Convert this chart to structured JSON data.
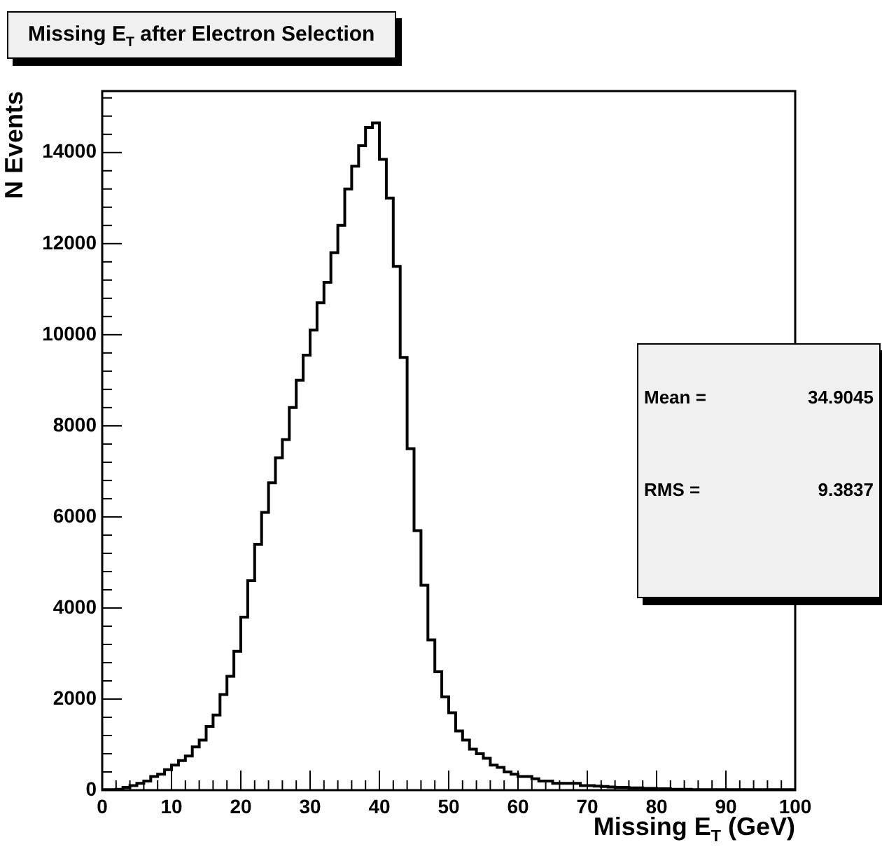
{
  "chart_data": {
    "type": "histogram",
    "title": "Missing E$_{T}$ after Electron Selection",
    "xlabel": "Missing E$_{T}$ (GeV)",
    "ylabel": "N Events",
    "bins": [
      0,
      1,
      2,
      3,
      4,
      5,
      6,
      7,
      8,
      9,
      10,
      11,
      12,
      13,
      14,
      15,
      16,
      17,
      18,
      19,
      20,
      21,
      22,
      23,
      24,
      25,
      26,
      27,
      28,
      29,
      30,
      31,
      32,
      33,
      34,
      35,
      36,
      37,
      38,
      39,
      40,
      41,
      42,
      43,
      44,
      45,
      46,
      47,
      48,
      49,
      50,
      51,
      52,
      53,
      54,
      55,
      56,
      57,
      58,
      59,
      60,
      61,
      62,
      63,
      64,
      65,
      66,
      67,
      68,
      69,
      70,
      71,
      72,
      73,
      74,
      75,
      76,
      77,
      78,
      79,
      80,
      81,
      82,
      83,
      84,
      85,
      86,
      87,
      88,
      89,
      90,
      91,
      92,
      93,
      94,
      95,
      96,
      97,
      98,
      99,
      100
    ],
    "values": [
      10,
      10,
      20,
      60,
      100,
      150,
      200,
      300,
      350,
      450,
      550,
      650,
      750,
      950,
      1100,
      1400,
      1650,
      2100,
      2500,
      3050,
      3800,
      4600,
      5400,
      6100,
      6750,
      7300,
      7700,
      8400,
      9000,
      9550,
      10100,
      10700,
      11150,
      11800,
      12400,
      13200,
      13700,
      14150,
      14550,
      14650,
      13850,
      13000,
      11500,
      9500,
      7500,
      5700,
      4500,
      3300,
      2600,
      2050,
      1700,
      1300,
      1100,
      900,
      800,
      700,
      550,
      500,
      400,
      350,
      300,
      300,
      250,
      200,
      200,
      150,
      150,
      150,
      150,
      100,
      100,
      90,
      80,
      70,
      60,
      60,
      50,
      50,
      40,
      40,
      30,
      30,
      20,
      20,
      20,
      10,
      10,
      10,
      10,
      10,
      10,
      10,
      10,
      10,
      10,
      10,
      10,
      10,
      10,
      10
    ],
    "color": "#000000",
    "xlim": [
      0,
      100
    ],
    "ylim": [
      0,
      15350
    ],
    "xticks": [
      0,
      10,
      20,
      30,
      40,
      50,
      60,
      70,
      80,
      90,
      100
    ],
    "yticks": [
      0,
      2000,
      4000,
      6000,
      8000,
      10000,
      12000,
      14000
    ],
    "grid": false,
    "legend": false,
    "annotations": [
      "Mean = 34.9045",
      "RMS = 9.3837"
    ]
  }
}
